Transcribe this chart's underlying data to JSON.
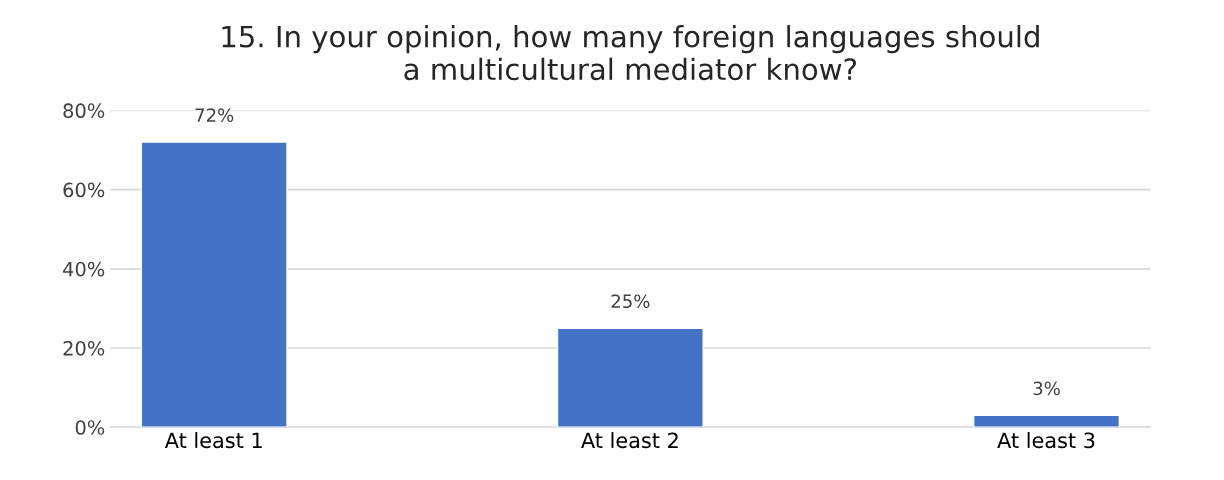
{
  "chart_data": {
    "type": "bar",
    "title": "15. In your opinion, how many foreign languages should\na multicultural mediator know?",
    "categories": [
      "At least 1",
      "At least 2",
      "At least 3"
    ],
    "values": [
      72,
      25,
      3
    ],
    "value_labels": [
      "72%",
      "25%",
      "3%"
    ],
    "color": "#4472c4",
    "ylim": [
      0,
      80
    ],
    "yticks": [
      {
        "value": 0,
        "label": "0%"
      },
      {
        "value": 20,
        "label": "20%"
      },
      {
        "value": 40,
        "label": "40%"
      },
      {
        "value": 60,
        "label": "60%"
      },
      {
        "value": 80,
        "label": "80%"
      }
    ],
    "grid": "y"
  }
}
